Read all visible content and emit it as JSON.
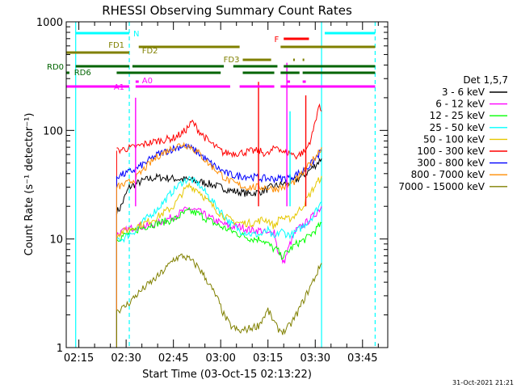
{
  "chart_data": {
    "type": "line",
    "title": "RHESSI Observing Summary Count Rates",
    "xlabel": "Start Time (03-Oct-15 02:13:22)",
    "ylabel": "Count Rate (s⁻¹ detector⁻¹)",
    "y_scale": "log",
    "ylim": [
      1,
      1000
    ],
    "xlim": [
      "02:11",
      "03:53"
    ],
    "x_ticks": [
      "02:15",
      "02:30",
      "02:45",
      "03:00",
      "03:15",
      "03:30",
      "03:45"
    ],
    "y_ticks": [
      "1",
      "10",
      "100",
      "1000"
    ],
    "grid": false,
    "legend": {
      "title": "Det 1,5,7",
      "placement": "right",
      "entries": [
        {
          "label": "3 - 6 keV",
          "color": "#000000"
        },
        {
          "label": "6 - 12 keV",
          "color": "#ff00ff"
        },
        {
          "label": "12 - 25 keV",
          "color": "#00ff00"
        },
        {
          "label": "25 - 50 keV",
          "color": "#00ffff"
        },
        {
          "label": "50 - 100 keV",
          "color": "#e6c800"
        },
        {
          "label": "100 - 300 keV",
          "color": "#ff0000"
        },
        {
          "label": "300 - 800 keV",
          "color": "#0000ff"
        },
        {
          "label": "800 - 7000 keV",
          "color": "#ff8c00"
        },
        {
          "label": "7000 - 15000 keV",
          "color": "#808000"
        }
      ]
    },
    "vlines": [
      {
        "time": "02:14",
        "color": "#00ffff",
        "style": "solid"
      },
      {
        "time": "02:31",
        "color": "#00ffff",
        "style": "dashed"
      },
      {
        "time": "03:32",
        "color": "#00ffff",
        "style": "solid"
      },
      {
        "time": "03:49",
        "color": "#00ffff",
        "style": "dashed"
      }
    ],
    "flag_bars": [
      {
        "label": "N",
        "color": "#00ffff",
        "segments": [
          [
            "02:14",
            "02:31"
          ],
          [
            "03:33",
            "03:49"
          ]
        ]
      },
      {
        "label": "F",
        "color": "#ff0000",
        "segments": [
          [
            "03:20",
            "03:28"
          ]
        ]
      },
      {
        "label": "FD1",
        "color": "#808000",
        "segments": [
          [
            "02:11",
            "02:31"
          ]
        ]
      },
      {
        "label": "FD2",
        "color": "#808000",
        "segments": [
          [
            "02:34",
            "03:06"
          ],
          [
            "03:19",
            "03:49"
          ]
        ]
      },
      {
        "label": "FD3",
        "color": "#808000",
        "segments": [
          [
            "03:07",
            "03:16"
          ],
          [
            "03:23",
            "03:23.5"
          ],
          [
            "03:26",
            "03:26.5"
          ]
        ]
      },
      {
        "label": "RD0",
        "color": "#006400",
        "segments": [
          [
            "02:14",
            "02:31"
          ],
          [
            "02:32",
            "03:01"
          ],
          [
            "03:04",
            "03:18"
          ],
          [
            "03:20",
            "03:49"
          ]
        ]
      },
      {
        "label": "RD6",
        "color": "#006400",
        "segments": [
          [
            "02:11",
            "02:12"
          ],
          [
            "02:27",
            "03:00"
          ],
          [
            "03:07",
            "03:17"
          ],
          [
            "03:19",
            "03:25"
          ],
          [
            "03:26",
            "03:49"
          ]
        ]
      },
      {
        "label": "A1",
        "color": "#ff00ff",
        "segments": [
          [
            "02:11",
            "02:31"
          ],
          [
            "02:33",
            "03:03"
          ],
          [
            "03:06",
            "03:17"
          ],
          [
            "03:19",
            "03:49"
          ]
        ]
      },
      {
        "label": "A0",
        "color": "#ff00ff",
        "segments": [
          [
            "02:33",
            "02:34"
          ],
          [
            "03:21",
            "03:22"
          ],
          [
            "03:26",
            "03:27"
          ]
        ]
      }
    ],
    "series": [
      {
        "name": "3 - 6 keV",
        "color": "#000000",
        "x": [
          "02:27",
          "02:28",
          "02:29",
          "02:30",
          "02:31",
          "02:33",
          "02:36",
          "02:40",
          "02:45",
          "02:50",
          "02:55",
          "03:00",
          "03:03",
          "03:06",
          "03:09",
          "03:12",
          "03:14",
          "03:16",
          "03:18",
          "03:20",
          "03:22",
          "03:24",
          "03:27",
          "03:30",
          "03:32"
        ],
        "y": [
          18,
          19,
          22,
          26,
          30,
          32,
          35,
          37,
          36,
          35,
          33,
          30,
          28,
          27,
          26,
          27,
          28,
          30,
          31,
          32,
          33,
          35,
          40,
          48,
          55
        ]
      },
      {
        "name": "6 - 12 keV",
        "color": "#ff00ff",
        "x": [
          "02:27",
          "02:30",
          "02:33",
          "02:36",
          "02:40",
          "02:45",
          "02:48",
          "02:50",
          "02:53",
          "02:56",
          "03:00",
          "03:03",
          "03:06",
          "03:10",
          "03:13",
          "03:15",
          "03:17",
          "03:18",
          "03:19",
          "03:20",
          "03:22",
          "03:24",
          "03:27",
          "03:30",
          "03:32"
        ],
        "y": [
          11,
          12,
          13,
          13,
          14,
          16,
          18,
          19,
          18,
          16,
          14,
          13,
          13,
          12,
          12,
          11,
          12,
          8,
          7,
          6,
          9,
          12,
          14,
          17,
          20
        ]
      },
      {
        "name": "12 - 25 keV",
        "color": "#00ff00",
        "x": [
          "02:27",
          "02:30",
          "02:33",
          "02:36",
          "02:40",
          "02:45",
          "02:48",
          "02:50",
          "02:53",
          "02:56",
          "03:00",
          "03:03",
          "03:06",
          "03:10",
          "03:13",
          "03:15",
          "03:17",
          "03:18",
          "03:19",
          "03:20",
          "03:22",
          "03:24",
          "03:27",
          "03:30",
          "03:32"
        ],
        "y": [
          10,
          11,
          12,
          13,
          14,
          15,
          17,
          18,
          17,
          15,
          13,
          12,
          11,
          10,
          10,
          9,
          8,
          8,
          7,
          7,
          8,
          9,
          10,
          12,
          14
        ]
      },
      {
        "name": "25 - 50 keV",
        "color": "#00ffff",
        "x": [
          "02:27",
          "02:29",
          "02:31",
          "02:33",
          "02:36",
          "02:40",
          "02:45",
          "02:48",
          "02:50",
          "02:53",
          "02:56",
          "03:00",
          "03:03",
          "03:06",
          "03:10",
          "03:13",
          "03:15",
          "03:17",
          "03:19",
          "03:21",
          "03:23",
          "03:26",
          "03:29",
          "03:32"
        ],
        "y": [
          10,
          10,
          11,
          12,
          15,
          19,
          28,
          34,
          36,
          32,
          25,
          18,
          14,
          12,
          11,
          11,
          12,
          10,
          12,
          11,
          11,
          13,
          16,
          22
        ]
      },
      {
        "name": "50 - 100 keV",
        "color": "#e6c800",
        "x": [
          "02:27",
          "02:30",
          "02:33",
          "02:36",
          "02:40",
          "02:45",
          "02:48",
          "02:50",
          "02:53",
          "02:56",
          "03:00",
          "03:03",
          "03:06",
          "03:10",
          "03:13",
          "03:15",
          "03:17",
          "03:19",
          "03:21",
          "03:23",
          "03:26",
          "03:29",
          "03:32"
        ],
        "y": [
          11,
          12,
          13,
          14,
          16,
          20,
          27,
          31,
          28,
          22,
          17,
          15,
          14,
          14,
          15,
          15,
          13,
          16,
          15,
          16,
          20,
          28,
          38
        ]
      },
      {
        "name": "100 - 300 keV",
        "color": "#ff0000",
        "x": [
          "02:27",
          "02:30",
          "02:33",
          "02:36",
          "02:40",
          "02:45",
          "02:48",
          "02:50",
          "02:51",
          "02:53",
          "02:56",
          "02:59",
          "03:01",
          "03:03",
          "03:06",
          "03:09",
          "03:12",
          "03:15",
          "03:16",
          "03:18",
          "03:20",
          "03:22",
          "03:24",
          "03:27",
          "03:29",
          "03:31",
          "03:32"
        ],
        "y": [
          65,
          68,
          70,
          75,
          80,
          85,
          95,
          110,
          120,
          100,
          80,
          68,
          62,
          62,
          62,
          64,
          65,
          60,
          64,
          72,
          62,
          62,
          58,
          65,
          90,
          165,
          150
        ]
      },
      {
        "name": "300 - 800 keV",
        "color": "#0000ff",
        "x": [
          "02:27",
          "02:30",
          "02:33",
          "02:36",
          "02:40",
          "02:45",
          "02:48",
          "02:50",
          "02:53",
          "02:56",
          "02:59",
          "03:02",
          "03:05",
          "03:08",
          "03:11",
          "03:14",
          "03:17",
          "03:20",
          "03:23",
          "03:26",
          "03:29",
          "03:32"
        ],
        "y": [
          38,
          40,
          44,
          50,
          60,
          68,
          72,
          70,
          62,
          52,
          45,
          40,
          38,
          38,
          37,
          36,
          36,
          36,
          38,
          42,
          50,
          65
        ]
      },
      {
        "name": "800 - 7000 keV",
        "color": "#ff8c00",
        "x": [
          "02:27",
          "02:30",
          "02:33",
          "02:36",
          "02:40",
          "02:45",
          "02:48",
          "02:50",
          "02:53",
          "02:56",
          "02:59",
          "03:02",
          "03:05",
          "03:08",
          "03:11",
          "03:14",
          "03:17",
          "03:20",
          "03:23",
          "03:26",
          "03:29",
          "03:32"
        ],
        "y": [
          30,
          32,
          36,
          45,
          58,
          70,
          75,
          72,
          62,
          50,
          42,
          35,
          32,
          30,
          30,
          30,
          29,
          30,
          33,
          40,
          52,
          70
        ]
      },
      {
        "name": "7000 - 15000 keV",
        "color": "#808000",
        "x": [
          "02:27",
          "02:29",
          "02:31",
          "02:33",
          "02:36",
          "02:40",
          "02:43",
          "02:45",
          "02:48",
          "02:50",
          "02:53",
          "02:56",
          "02:59",
          "03:01",
          "03:03",
          "03:06",
          "03:09",
          "03:12",
          "03:15",
          "03:18",
          "03:20",
          "03:22",
          "03:24",
          "03:27",
          "03:30",
          "03:32"
        ],
        "y": [
          2.2,
          2.3,
          2.6,
          3.0,
          3.6,
          4.5,
          5.5,
          6.5,
          7.0,
          6.5,
          5.5,
          4.0,
          2.8,
          2.0,
          1.6,
          1.4,
          1.5,
          1.6,
          2.2,
          1.5,
          1.4,
          1.6,
          2.0,
          3.0,
          4.5,
          6.0
        ]
      }
    ],
    "spikes": [
      {
        "time": "02:33",
        "value": 200,
        "color": "#ff00ff"
      },
      {
        "time": "03:12",
        "value": 280,
        "color": "#ff0000"
      },
      {
        "time": "03:21",
        "value": 420,
        "color": "#ff00ff"
      },
      {
        "time": "03:22",
        "value": 150,
        "color": "#00ffff"
      },
      {
        "time": "03:27",
        "value": 210,
        "color": "#ff0000"
      }
    ]
  },
  "footer": {
    "timestamp": "31-Oct-2021 21:21"
  }
}
